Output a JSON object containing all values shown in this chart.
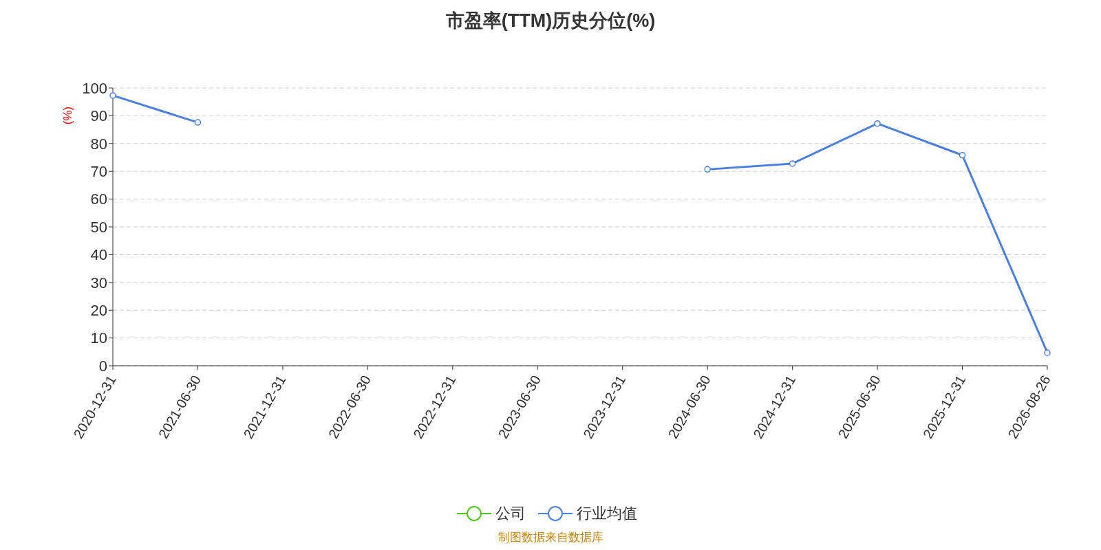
{
  "chart_data": {
    "type": "line",
    "title": "市盈率(TTM)历史分位(%)",
    "ylabel": "(%)",
    "categories": [
      "2020-12-31",
      "2021-06-30",
      "2021-12-31",
      "2022-06-30",
      "2022-12-31",
      "2023-06-30",
      "2023-12-31",
      "2024-06-30",
      "2024-12-31",
      "2025-06-30",
      "2025-12-31",
      "2026-08-26"
    ],
    "series": [
      {
        "name": "公司",
        "color": "#52c41a",
        "values": [
          null,
          null,
          null,
          null,
          null,
          null,
          null,
          null,
          null,
          null,
          null,
          null
        ]
      },
      {
        "name": "行业均值",
        "color": "#4a7fe0",
        "values": [
          97.3,
          87.6,
          null,
          null,
          null,
          null,
          null,
          70.7,
          72.8,
          87.2,
          75.8,
          4.7
        ]
      }
    ],
    "ylim": [
      0,
      100
    ],
    "yticks": [
      0,
      10,
      20,
      30,
      40,
      50,
      60,
      70,
      80,
      90,
      100
    ],
    "grid": "y",
    "legend": "bottom",
    "marker": "circle",
    "line_style": "solid",
    "annotations": [
      "制图数据来自数据库"
    ]
  }
}
